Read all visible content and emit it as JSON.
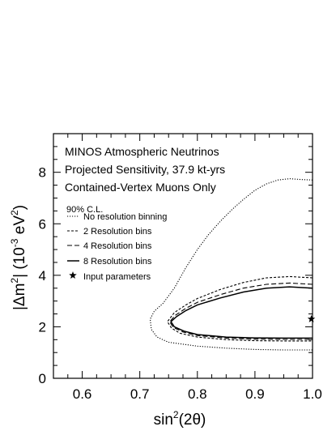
{
  "chart_data": {
    "type": "line",
    "title_lines": [
      "MINOS Atmospheric Neutrinos",
      "Projected Sensitivity, 37.9 kt-yrs",
      "Contained-Vertex Muons Only"
    ],
    "legend_title": "90% C.L.",
    "xlabel": "sin²(2θ)",
    "xlabel_base": "sin",
    "xlabel_sup": "2",
    "xlabel_rest": "(2θ)",
    "ylabel": "|Δm²| (10⁻³ eV²)",
    "ylabel_parts": {
      "a": "|Δm",
      "sup1": "2",
      "b": "| (10",
      "sup2": "-3",
      "c": " eV",
      "sup3": "2",
      "d": ")"
    },
    "xlim": [
      0.55,
      1.0
    ],
    "ylim": [
      0,
      9.5
    ],
    "xticks": [
      0.6,
      0.7,
      0.8,
      0.9,
      1.0
    ],
    "xtick_labels": [
      "0.6",
      "0.7",
      "0.8",
      "0.9",
      "1.0"
    ],
    "yticks": [
      0,
      2,
      4,
      6,
      8
    ],
    "ytick_labels": [
      "0",
      "2",
      "4",
      "6",
      "8"
    ],
    "legend_position": "left",
    "series": [
      {
        "name": "No resolution binning",
        "style": "dotted",
        "upper": [
          [
            1.0,
            7.7
          ],
          [
            0.98,
            7.72
          ],
          [
            0.96,
            7.75
          ],
          [
            0.94,
            7.7
          ],
          [
            0.92,
            7.55
          ],
          [
            0.9,
            7.3
          ],
          [
            0.88,
            6.95
          ],
          [
            0.86,
            6.55
          ],
          [
            0.84,
            6.1
          ],
          [
            0.82,
            5.6
          ],
          [
            0.8,
            5.0
          ],
          [
            0.78,
            4.3
          ],
          [
            0.76,
            3.5
          ],
          [
            0.74,
            2.9
          ],
          [
            0.725,
            2.6
          ],
          [
            0.718,
            2.3
          ]
        ],
        "lower": [
          [
            0.718,
            2.3
          ],
          [
            0.72,
            1.9
          ],
          [
            0.73,
            1.6
          ],
          [
            0.75,
            1.4
          ],
          [
            0.8,
            1.25
          ],
          [
            0.85,
            1.17
          ],
          [
            0.9,
            1.12
          ],
          [
            0.95,
            1.1
          ],
          [
            1.0,
            1.1
          ]
        ]
      },
      {
        "name": "2 Resolution bins",
        "style": "short-dash",
        "upper": [
          [
            1.0,
            3.9
          ],
          [
            0.96,
            3.95
          ],
          [
            0.92,
            3.9
          ],
          [
            0.88,
            3.72
          ],
          [
            0.84,
            3.45
          ],
          [
            0.8,
            3.1
          ],
          [
            0.78,
            2.85
          ],
          [
            0.76,
            2.55
          ],
          [
            0.748,
            2.2
          ]
        ],
        "lower": [
          [
            0.748,
            2.2
          ],
          [
            0.755,
            1.95
          ],
          [
            0.77,
            1.75
          ],
          [
            0.8,
            1.6
          ],
          [
            0.85,
            1.5
          ],
          [
            0.9,
            1.46
          ],
          [
            0.95,
            1.45
          ],
          [
            1.0,
            1.45
          ]
        ]
      },
      {
        "name": "4 Resolution bins",
        "style": "dash",
        "upper": [
          [
            1.0,
            3.65
          ],
          [
            0.96,
            3.7
          ],
          [
            0.92,
            3.65
          ],
          [
            0.88,
            3.5
          ],
          [
            0.84,
            3.25
          ],
          [
            0.8,
            2.95
          ],
          [
            0.78,
            2.72
          ],
          [
            0.762,
            2.45
          ],
          [
            0.752,
            2.2
          ]
        ],
        "lower": [
          [
            0.752,
            2.2
          ],
          [
            0.758,
            1.98
          ],
          [
            0.775,
            1.8
          ],
          [
            0.8,
            1.66
          ],
          [
            0.85,
            1.56
          ],
          [
            0.9,
            1.52
          ],
          [
            0.95,
            1.51
          ],
          [
            1.0,
            1.51
          ]
        ]
      },
      {
        "name": "8 Resolution bins",
        "style": "solid",
        "upper": [
          [
            1.0,
            3.5
          ],
          [
            0.96,
            3.55
          ],
          [
            0.92,
            3.5
          ],
          [
            0.88,
            3.35
          ],
          [
            0.84,
            3.12
          ],
          [
            0.8,
            2.85
          ],
          [
            0.78,
            2.63
          ],
          [
            0.764,
            2.4
          ],
          [
            0.754,
            2.2
          ]
        ],
        "lower": [
          [
            0.754,
            2.2
          ],
          [
            0.76,
            2.0
          ],
          [
            0.777,
            1.83
          ],
          [
            0.8,
            1.7
          ],
          [
            0.85,
            1.6
          ],
          [
            0.9,
            1.57
          ],
          [
            0.95,
            1.56
          ],
          [
            1.0,
            1.56
          ]
        ]
      }
    ],
    "input_parameters": {
      "name": "Input parameters",
      "x": 0.998,
      "y": 2.3
    }
  }
}
